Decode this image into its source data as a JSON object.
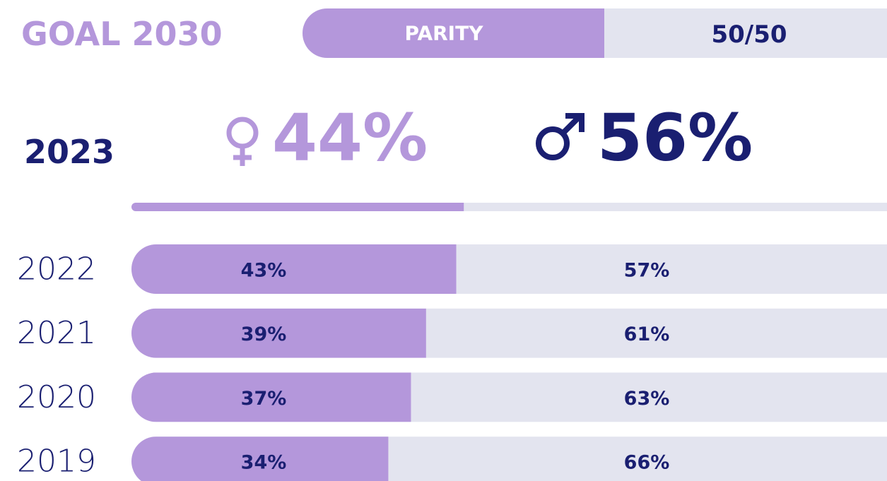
{
  "chart_data": {
    "type": "bar",
    "orientation": "horizontal",
    "stacked": true,
    "title": "GOAL 2030",
    "goal": {
      "label": "PARITY",
      "value": "50/50"
    },
    "highlight": {
      "category": "2023",
      "values": [
        44,
        56
      ],
      "value_labels": [
        "44%",
        "56%"
      ]
    },
    "categories": [
      "2022",
      "2021",
      "2020",
      "2019"
    ],
    "series": [
      {
        "color": "#b497db",
        "values": [
          43,
          39,
          37,
          34
        ],
        "value_labels": [
          "43%",
          "39%",
          "37%",
          "34%"
        ]
      },
      {
        "color": "#e3e4ef",
        "values": [
          57,
          61,
          63,
          66
        ],
        "value_labels": [
          "57%",
          "61%",
          "63%",
          "66%"
        ]
      }
    ],
    "xlim": [
      0,
      100
    ]
  }
}
